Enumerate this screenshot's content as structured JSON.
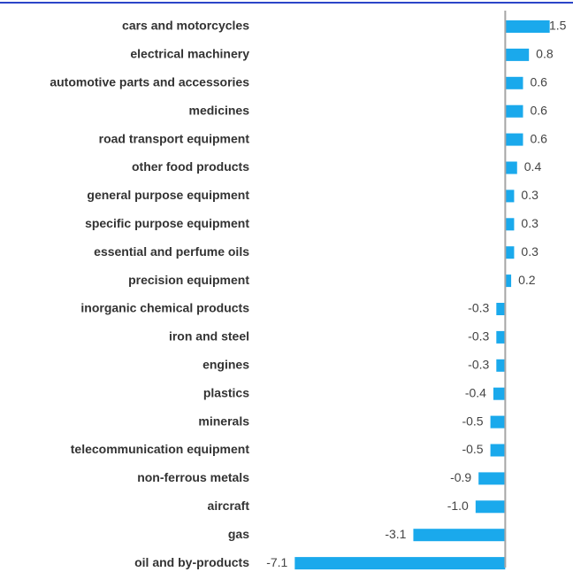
{
  "chart_data": {
    "type": "bar",
    "orientation": "horizontal",
    "categories": [
      "cars and motorcycles",
      "electrical machinery",
      "automotive parts and accessories",
      "medicines",
      "road transport equipment",
      "other food products",
      "general purpose equipment",
      "specific purpose equipment",
      "essential and perfume oils",
      "precision equipment",
      "inorganic chemical products",
      "iron and steel",
      "engines",
      "plastics",
      "minerals",
      "telecommunication equipment",
      "non-ferrous metals",
      "aircraft",
      "gas",
      "oil and by-products"
    ],
    "values": [
      1.5,
      0.8,
      0.6,
      0.6,
      0.6,
      0.4,
      0.3,
      0.3,
      0.3,
      0.2,
      -0.3,
      -0.3,
      -0.3,
      -0.4,
      -0.5,
      -0.5,
      -0.9,
      -1.0,
      -3.1,
      -7.1
    ],
    "value_labels": [
      "1.5",
      "0.8",
      "0.6",
      "0.6",
      "0.6",
      "0.4",
      "0.3",
      "0.3",
      "0.3",
      "0.2",
      "-0.3",
      "-0.3",
      "-0.3",
      "-0.4",
      "-0.5",
      "-0.5",
      "-0.9",
      "-1.0",
      "-3.1",
      "-7.1"
    ],
    "color": "#1aa9ec",
    "xlim": [
      -7.2,
      1.6
    ]
  }
}
